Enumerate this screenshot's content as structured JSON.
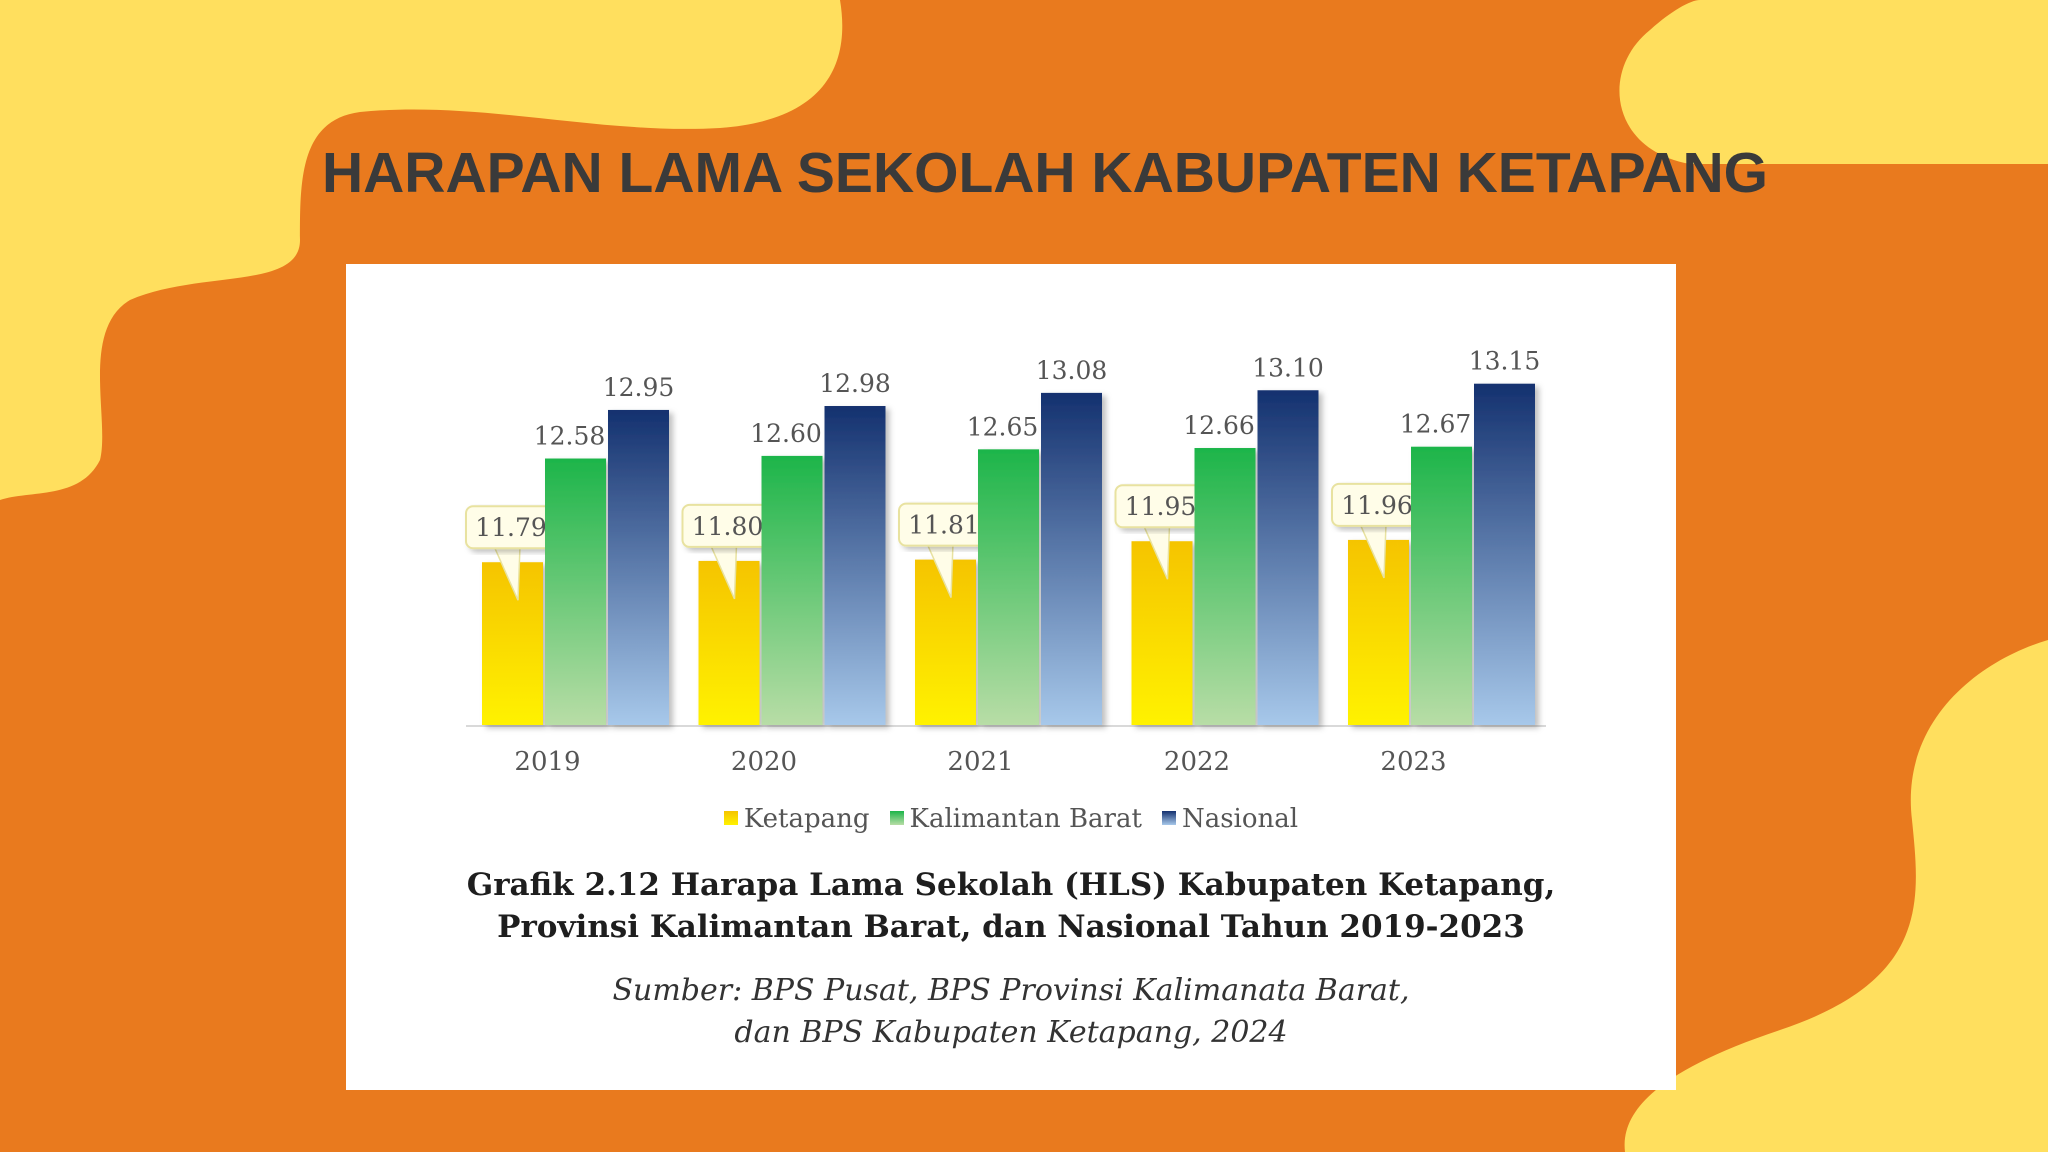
{
  "slide": {
    "title": "HARAPAN LAMA SEKOLAH KABUPATEN KETAPANG",
    "colors": {
      "background": "#E97A1E",
      "blob": "#FFDF5E",
      "title": "#3A3A3A"
    }
  },
  "figure": {
    "caption_lines": [
      "Grafik 2.12 Harapa Lama Sekolah (HLS) Kabupaten Ketapang,",
      "Provinsi Kalimantan Barat, dan Nasional Tahun 2019-2023"
    ],
    "source_lines": [
      "Sumber: BPS Pusat, BPS Provinsi Kalimanata Barat,",
      "dan BPS Kabupaten Ketapang, 2024"
    ]
  },
  "chart_data": {
    "type": "bar",
    "categories": [
      "2019",
      "2020",
      "2021",
      "2022",
      "2023"
    ],
    "series": [
      {
        "name": "Ketapang",
        "values": [
          11.79,
          11.8,
          11.81,
          11.95,
          11.96
        ],
        "labels": [
          "11.79",
          "11.80",
          "11.81",
          "11.95",
          "11.96"
        ],
        "color_top": "#F5C400",
        "color_bottom": "#FFF200"
      },
      {
        "name": "Kalimantan Barat",
        "values": [
          12.58,
          12.6,
          12.65,
          12.66,
          12.67
        ],
        "labels": [
          "12.58",
          "12.60",
          "12.65",
          "12.66",
          "12.67"
        ],
        "color_top": "#1DB54A",
        "color_bottom": "#B8DDA6"
      },
      {
        "name": "Nasional",
        "values": [
          12.95,
          12.98,
          13.08,
          13.1,
          13.15
        ],
        "labels": [
          "12.95",
          "12.98",
          "13.08",
          "13.10",
          "13.15"
        ],
        "color_top": "#14316F",
        "color_bottom": "#A7C8EA"
      }
    ],
    "legend_position": "bottom",
    "grid": false,
    "ylim": [
      10.55,
      13.3
    ],
    "callout_series": "Ketapang"
  }
}
